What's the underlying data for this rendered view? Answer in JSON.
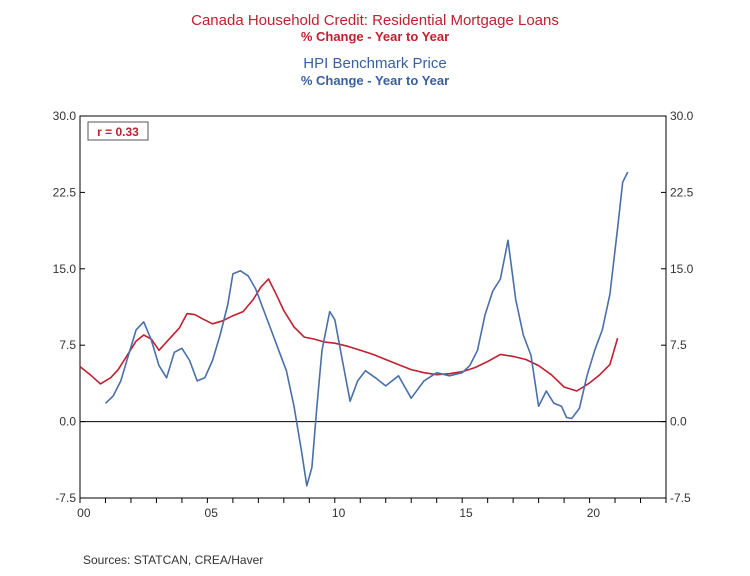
{
  "titles": {
    "line1": "Canada Household Credit: Residential Mortgage Loans",
    "line2": "% Change - Year to Year",
    "line3": "HPI Benchmark Price",
    "line4": "% Change - Year to Year"
  },
  "source": "Sources: STATCAN, CREA/Haver",
  "colors": {
    "mortgage": "#c0202f",
    "hpi": "#4a6fa8",
    "axis": "#000000"
  },
  "chart_data": {
    "type": "line",
    "annotation": "r = 0.33",
    "ylim": [
      -7.5,
      30.0
    ],
    "yticks_left": [
      "30.0",
      "22.5",
      "15.0",
      "7.5",
      "0.0",
      "-7.5"
    ],
    "yticks_right": [
      "30.0",
      "22.5",
      "15.0",
      "7.5",
      "0.0",
      "-7.5"
    ],
    "ytick_values": [
      30.0,
      22.5,
      15.0,
      7.5,
      0.0,
      -7.5
    ],
    "xlim": [
      2000,
      2023
    ],
    "xticks": [
      {
        "year": 2000,
        "label": "00"
      },
      {
        "year": 2005,
        "label": "05"
      },
      {
        "year": 2010,
        "label": "10"
      },
      {
        "year": 2015,
        "label": "15"
      },
      {
        "year": 2020,
        "label": "20"
      }
    ],
    "zero_line": true,
    "series": [
      {
        "key": "mortgage",
        "x": [
          2000.0,
          2000.4,
          2000.8,
          2001.2,
          2001.5,
          2001.8,
          2002.2,
          2002.5,
          2002.8,
          2003.1,
          2003.5,
          2003.9,
          2004.2,
          2004.5,
          2004.8,
          2005.2,
          2005.6,
          2006.0,
          2006.4,
          2006.8,
          2007.1,
          2007.4,
          2007.7,
          2008.0,
          2008.4,
          2008.8,
          2009.2,
          2009.6,
          2010.0,
          2010.5,
          2011.0,
          2011.5,
          2012.0,
          2012.5,
          2013.0,
          2013.5,
          2014.0,
          2014.5,
          2015.0,
          2015.5,
          2016.0,
          2016.5,
          2017.0,
          2017.5,
          2018.0,
          2018.5,
          2019.0,
          2019.5,
          2020.0,
          2020.4,
          2020.8,
          2021.1
        ],
        "y": [
          5.4,
          4.6,
          3.7,
          4.3,
          5.1,
          6.3,
          7.9,
          8.5,
          8.1,
          7.0,
          8.1,
          9.2,
          10.6,
          10.5,
          10.1,
          9.6,
          9.9,
          10.4,
          10.8,
          12.0,
          13.2,
          14.0,
          12.5,
          10.9,
          9.3,
          8.3,
          8.1,
          7.8,
          7.7,
          7.4,
          7.0,
          6.6,
          6.1,
          5.6,
          5.1,
          4.8,
          4.6,
          4.7,
          4.9,
          5.3,
          5.9,
          6.6,
          6.4,
          6.1,
          5.5,
          4.6,
          3.4,
          3.0,
          3.8,
          4.6,
          5.6,
          8.2
        ]
      },
      {
        "key": "hpi",
        "x": [
          2001.0,
          2001.3,
          2001.6,
          2001.9,
          2002.2,
          2002.5,
          2002.8,
          2003.1,
          2003.4,
          2003.7,
          2004.0,
          2004.3,
          2004.6,
          2004.9,
          2005.2,
          2005.5,
          2005.8,
          2006.0,
          2006.3,
          2006.6,
          2006.9,
          2007.2,
          2007.5,
          2007.8,
          2008.1,
          2008.4,
          2008.7,
          2008.9,
          2009.1,
          2009.3,
          2009.5,
          2009.8,
          2010.0,
          2010.3,
          2010.6,
          2010.9,
          2011.2,
          2011.6,
          2012.0,
          2012.5,
          2013.0,
          2013.5,
          2014.0,
          2014.5,
          2015.0,
          2015.3,
          2015.6,
          2015.9,
          2016.2,
          2016.5,
          2016.8,
          2017.1,
          2017.4,
          2017.7,
          2018.0,
          2018.3,
          2018.6,
          2018.9,
          2019.1,
          2019.3,
          2019.6,
          2019.9,
          2020.2,
          2020.5,
          2020.8,
          2021.1,
          2021.3,
          2021.5
        ],
        "y": [
          1.8,
          2.5,
          4.0,
          6.5,
          9.0,
          9.8,
          8.0,
          5.5,
          4.3,
          6.8,
          7.2,
          6.0,
          4.0,
          4.3,
          6.0,
          8.5,
          11.5,
          14.5,
          14.8,
          14.3,
          13.0,
          11.0,
          9.0,
          7.0,
          5.0,
          1.5,
          -3.0,
          -6.3,
          -4.5,
          1.5,
          7.0,
          10.8,
          10.0,
          6.0,
          2.0,
          4.0,
          5.0,
          4.3,
          3.5,
          4.5,
          2.3,
          4.0,
          4.8,
          4.5,
          4.8,
          5.5,
          7.0,
          10.5,
          12.8,
          14.0,
          17.8,
          12.0,
          8.5,
          6.5,
          1.5,
          3.0,
          1.8,
          1.5,
          0.4,
          0.3,
          1.3,
          4.5,
          7.0,
          9.0,
          12.5,
          19.0,
          23.5,
          24.5
        ]
      }
    ]
  }
}
